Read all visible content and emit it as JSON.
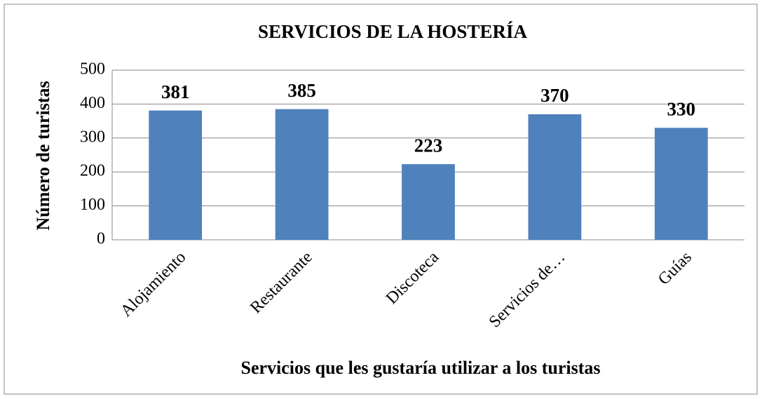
{
  "chart_data": {
    "type": "bar",
    "title": "SERVICIOS DE LA HOSTERÍA",
    "x_label": "Servicios que les gustaría utilizar a los turistas",
    "y_label": "Número de turistas",
    "categories": [
      "Alojamiento",
      "Restaurante",
      "Discoteca",
      "Servicios de…",
      "Guías"
    ],
    "values": [
      381,
      385,
      223,
      370,
      330
    ],
    "color": "#4f81bd",
    "ylim": [
      0,
      500
    ],
    "yticks": [
      0,
      100,
      200,
      300,
      400,
      500
    ],
    "grid": true
  }
}
